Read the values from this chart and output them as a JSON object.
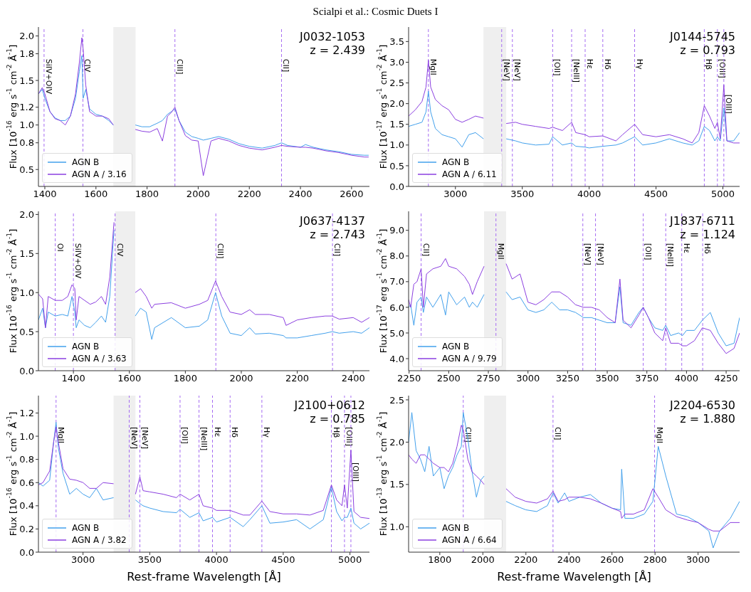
{
  "chart_data": [
    {
      "type": "line",
      "title": "Scialpi et al.: Cosmic Duets I",
      "ylabel": "Flux [10$^{-16}$ erg s$^{-1}$ cm$^{-2}$ Å$^{-1}$]",
      "annotations": [
        "J0032-1053",
        "z = 2.439"
      ],
      "legend": "bottom left",
      "x": [
        1375,
        1390,
        1400,
        1420,
        1440,
        1460,
        1480,
        1500,
        1520,
        1535,
        1545,
        1550,
        1560,
        1575,
        1600,
        1625,
        1650,
        1668,
        1710,
        1754,
        1780,
        1810,
        1840,
        1860,
        1880,
        1895,
        1909,
        1925,
        1950,
        1975,
        2000,
        2020,
        2050,
        2080,
        2120,
        2160,
        2200,
        2250,
        2300,
        2326,
        2350,
        2400,
        2420,
        2450,
        2500,
        2550,
        2600,
        2650,
        2667
      ],
      "series": [
        {
          "name": "AGN B",
          "color": "#42a0ec",
          "values": [
            1.35,
            1.4,
            1.3,
            1.15,
            1.08,
            1.05,
            1.05,
            1.1,
            1.3,
            1.6,
            1.78,
            1.3,
            1.4,
            1.18,
            1.12,
            1.1,
            1.05,
            1.0,
            null,
            1.0,
            0.98,
            0.98,
            1.02,
            1.05,
            1.12,
            1.15,
            1.18,
            1.05,
            0.92,
            0.87,
            0.85,
            0.83,
            0.85,
            0.87,
            0.84,
            0.79,
            0.76,
            0.74,
            0.77,
            0.8,
            0.77,
            0.75,
            0.78,
            0.75,
            0.72,
            0.7,
            0.67,
            0.66,
            0.66
          ]
        },
        {
          "name": "AGN A / 3.16",
          "color": "#8b3fe0",
          "values": [
            1.35,
            1.42,
            1.35,
            1.15,
            1.07,
            1.05,
            1.0,
            1.1,
            1.35,
            1.7,
            1.98,
            1.85,
            1.45,
            1.15,
            1.1,
            1.1,
            1.07,
            1.0,
            null,
            0.95,
            0.93,
            0.92,
            0.96,
            0.82,
            1.1,
            1.14,
            1.2,
            1.05,
            0.88,
            0.83,
            0.82,
            0.43,
            0.82,
            0.85,
            0.82,
            0.77,
            0.74,
            0.72,
            0.75,
            0.77,
            0.76,
            0.75,
            0.75,
            0.74,
            0.71,
            0.69,
            0.66,
            0.64,
            0.64
          ]
        }
      ],
      "xlim": [
        1375,
        2670
      ],
      "ylim": [
        0.31,
        2.1
      ],
      "xticks": [
        1400,
        1600,
        1800,
        2000,
        2200,
        2400,
        2600
      ],
      "yticks": [
        0.5,
        0.8,
        {
          "value": 1,
          "label": "1.0"
        },
        1.2,
        1.5,
        1.8,
        {
          "value": 2,
          "label": "2.0"
        }
      ],
      "bands": [
        {
          "axis": "x",
          "from": 1668,
          "to": 1755,
          "color": "#efefef"
        }
      ],
      "ref_lines": [
        {
          "axis": "x",
          "value": 1397,
          "label": "SiIV+OIV",
          "color": "#a66cf2",
          "line_style": "dashed"
        },
        {
          "axis": "x",
          "value": 1549,
          "label": "CIV",
          "color": "#a66cf2",
          "line_style": "dashed"
        },
        {
          "axis": "x",
          "value": 1909,
          "label": "CIII]",
          "color": "#a66cf2",
          "line_style": "dashed"
        },
        {
          "axis": "x",
          "value": 2326,
          "label": "CII]",
          "color": "#a66cf2",
          "line_style": "dashed"
        }
      ]
    },
    {
      "type": "line",
      "ylabel": "Flux [10$^{-17}$ erg s$^{-1}$ cm$^{-2}$ Å$^{-1}$]",
      "annotations": [
        "J0144-5745",
        "z = 0.793"
      ],
      "legend": "bottom left",
      "x": [
        2650,
        2700,
        2750,
        2780,
        2798,
        2815,
        2850,
        2900,
        2950,
        3000,
        3050,
        3100,
        3150,
        3210,
        3300,
        3380,
        3450,
        3500,
        3600,
        3700,
        3727,
        3800,
        3869,
        3900,
        3970,
        4000,
        4102,
        4200,
        4250,
        4340,
        4400,
        4500,
        4600,
        4700,
        4770,
        4820,
        4861,
        4900,
        4940,
        4959,
        4980,
        5007,
        5030,
        5080,
        5125
      ],
      "series": [
        {
          "name": "AGN B",
          "color": "#42a0ec",
          "values": [
            1.45,
            1.5,
            1.55,
            1.8,
            2.3,
            1.8,
            1.4,
            1.25,
            1.2,
            1.15,
            0.95,
            1.25,
            1.3,
            1.15,
            null,
            1.15,
            1.1,
            1.05,
            1.0,
            1.02,
            1.2,
            1.0,
            1.05,
            0.97,
            0.95,
            0.93,
            0.97,
            1.0,
            1.05,
            1.2,
            1.0,
            1.05,
            1.15,
            1.05,
            1.0,
            1.1,
            1.45,
            1.35,
            1.1,
            1.2,
            1.1,
            1.9,
            1.1,
            1.1,
            1.3
          ]
        },
        {
          "name": "AGN A / 6.11",
          "color": "#8b3fe0",
          "values": [
            1.7,
            1.85,
            2.05,
            2.4,
            3.05,
            2.4,
            2.1,
            1.95,
            1.85,
            1.62,
            1.55,
            1.62,
            1.7,
            1.65,
            null,
            1.52,
            1.55,
            1.5,
            1.45,
            1.4,
            1.43,
            1.35,
            1.55,
            1.3,
            1.25,
            1.2,
            1.22,
            1.1,
            1.25,
            1.5,
            1.25,
            1.2,
            1.25,
            1.15,
            1.05,
            1.3,
            1.95,
            1.7,
            1.4,
            1.55,
            1.15,
            2.45,
            1.1,
            1.05,
            1.05
          ]
        }
      ],
      "xlim": [
        2650,
        5125
      ],
      "ylim": [
        0,
        3.85
      ],
      "xticks": [
        3000,
        3500,
        4000,
        4500,
        5000
      ],
      "yticks": [
        {
          "value": 0,
          "label": "0.0"
        },
        0.5,
        {
          "value": 1,
          "label": "1.0"
        },
        1.5,
        {
          "value": 2,
          "label": "2.0"
        },
        2.5,
        {
          "value": 3,
          "label": "3.0"
        },
        3.5
      ],
      "bands": [
        {
          "axis": "x",
          "from": 3210,
          "to": 3380,
          "color": "#efefef"
        }
      ],
      "ref_lines": [
        {
          "axis": "x",
          "value": 2798,
          "label": "MgII",
          "color": "#a66cf2",
          "line_style": "dashed"
        },
        {
          "axis": "x",
          "value": 3346,
          "label": "[NeV]",
          "color": "#a66cf2",
          "line_style": "dashed"
        },
        {
          "axis": "x",
          "value": 3426,
          "label": "[NeV]",
          "color": "#a66cf2",
          "line_style": "dashed"
        },
        {
          "axis": "x",
          "value": 3727,
          "label": "[OII]",
          "color": "#a66cf2",
          "line_style": "dashed"
        },
        {
          "axis": "x",
          "value": 3869,
          "label": "[NeIII]",
          "color": "#a66cf2",
          "line_style": "dashed"
        },
        {
          "axis": "x",
          "value": 3970,
          "label": "Hε",
          "color": "#a66cf2",
          "line_style": "dashed"
        },
        {
          "axis": "x",
          "value": 4102,
          "label": "Hδ",
          "color": "#a66cf2",
          "line_style": "dashed"
        },
        {
          "axis": "x",
          "value": 4340,
          "label": "Hγ",
          "color": "#a66cf2",
          "line_style": "dashed"
        },
        {
          "axis": "x",
          "value": 4861,
          "label": "Hβ",
          "color": "#a66cf2",
          "line_style": "dashed"
        },
        {
          "axis": "x",
          "value": 4959,
          "label": "[OIII]",
          "color": "#a66cf2",
          "line_style": "dashed"
        },
        {
          "axis": "x",
          "value": 5007,
          "label": "[OIII]",
          "color": "#a66cf2",
          "line_style": "dashed"
        }
      ]
    },
    {
      "type": "line",
      "ylabel": "Flux [10$^{-16}$ erg s$^{-1}$ cm$^{-2}$ Å$^{-1}$]",
      "annotations": [
        "J0637-4137",
        "z = 2.743"
      ],
      "legend": "bottom left",
      "x": [
        1275,
        1290,
        1300,
        1310,
        1335,
        1360,
        1380,
        1395,
        1405,
        1410,
        1420,
        1440,
        1460,
        1480,
        1500,
        1515,
        1530,
        1545,
        1585,
        1621,
        1640,
        1660,
        1680,
        1690,
        1750,
        1800,
        1850,
        1880,
        1908,
        1930,
        1960,
        2000,
        2030,
        2050,
        2100,
        2150,
        2160,
        2200,
        2250,
        2300,
        2325,
        2350,
        2400,
        2430,
        2458
      ],
      "series": [
        {
          "name": "AGN B",
          "color": "#42a0ec",
          "values": [
            0.65,
            0.8,
            0.55,
            0.75,
            0.7,
            0.72,
            0.7,
            0.95,
            0.75,
            0.55,
            0.65,
            0.58,
            0.55,
            0.62,
            0.7,
            0.62,
            0.95,
            1.8,
            null,
            0.7,
            0.8,
            0.75,
            0.4,
            0.55,
            0.68,
            0.55,
            0.57,
            0.65,
            1.0,
            0.7,
            0.48,
            0.45,
            0.55,
            0.47,
            0.48,
            0.45,
            0.42,
            0.42,
            0.45,
            0.48,
            0.5,
            0.48,
            0.5,
            0.48,
            0.55
          ]
        },
        {
          "name": "AGN A / 3.63",
          "color": "#8b3fe0",
          "values": [
            0.98,
            0.92,
            0.55,
            0.95,
            0.9,
            0.9,
            0.95,
            1.1,
            1.05,
            0.65,
            0.95,
            0.9,
            0.85,
            0.88,
            0.95,
            0.85,
            1.2,
            1.9,
            null,
            1.0,
            1.05,
            0.95,
            0.8,
            0.85,
            0.87,
            0.8,
            0.85,
            0.9,
            1.15,
            0.95,
            0.75,
            0.72,
            0.78,
            0.72,
            0.72,
            0.68,
            0.58,
            0.65,
            0.68,
            0.7,
            0.7,
            0.66,
            0.68,
            0.62,
            0.68
          ]
        }
      ],
      "xlim": [
        1275,
        2458
      ],
      "ylim": [
        0,
        2.04
      ],
      "xticks": [
        1400,
        1600,
        1800,
        2000,
        2200,
        2400
      ],
      "yticks": [
        {
          "value": 0,
          "label": "0.0"
        },
        0.5,
        {
          "value": 1,
          "label": "1.0"
        },
        1.5,
        {
          "value": 2,
          "label": "2.0"
        }
      ],
      "bands": [
        {
          "axis": "x",
          "from": 1549,
          "to": 1621,
          "color": "#efefef"
        }
      ],
      "ref_lines": [
        {
          "axis": "x",
          "value": 1335,
          "label": "OI",
          "color": "#a66cf2",
          "line_style": "dashed"
        },
        {
          "axis": "x",
          "value": 1400,
          "label": "SiIV+OIV",
          "color": "#a66cf2",
          "line_style": "dashed"
        },
        {
          "axis": "x",
          "value": 1549,
          "label": "CIV",
          "color": "#a66cf2",
          "line_style": "dashed"
        },
        {
          "axis": "x",
          "value": 1909,
          "label": "CIII]",
          "color": "#a66cf2",
          "line_style": "dashed"
        },
        {
          "axis": "x",
          "value": 2326,
          "label": "CII]",
          "color": "#a66cf2",
          "line_style": "dashed"
        }
      ]
    },
    {
      "type": "line",
      "ylabel": "Flux [10$^{-17}$ erg s$^{-1}$ cm$^{-2}$ Å$^{-1}$]",
      "annotations": [
        "J1837-6711",
        "z = 1.124"
      ],
      "legend": "bottom left",
      "x": [
        2247,
        2260,
        2280,
        2300,
        2326,
        2340,
        2360,
        2400,
        2450,
        2480,
        2500,
        2550,
        2600,
        2630,
        2650,
        2680,
        2723,
        2790,
        2862,
        2900,
        2950,
        3000,
        3050,
        3100,
        3150,
        3200,
        3250,
        3300,
        3350,
        3400,
        3450,
        3500,
        3550,
        3580,
        3600,
        3650,
        3700,
        3727,
        3760,
        3800,
        3850,
        3869,
        3900,
        3950,
        3975,
        4000,
        4050,
        4100,
        4150,
        4200,
        4250,
        4300,
        4335
      ],
      "series": [
        {
          "name": "AGN B",
          "color": "#42a0ec",
          "values": [
            6.0,
            6.1,
            5.3,
            6.2,
            6.4,
            5.8,
            6.4,
            6.0,
            6.5,
            5.7,
            6.6,
            6.1,
            6.4,
            6.0,
            6.2,
            6.0,
            6.5,
            null,
            6.6,
            6.3,
            6.4,
            5.9,
            5.8,
            5.9,
            6.2,
            5.9,
            5.9,
            5.8,
            5.6,
            5.6,
            5.5,
            5.4,
            5.4,
            6.8,
            5.4,
            5.3,
            5.8,
            6.0,
            5.6,
            5.2,
            5.1,
            5.3,
            4.9,
            5.0,
            4.9,
            5.1,
            5.1,
            5.5,
            5.8,
            5.0,
            4.5,
            4.6,
            5.6
          ]
        },
        {
          "name": "AGN A / 9.79",
          "color": "#8b3fe0",
          "values": [
            6.3,
            6.0,
            6.9,
            7.0,
            7.5,
            6.0,
            7.3,
            7.5,
            7.6,
            7.9,
            7.6,
            7.5,
            7.2,
            6.9,
            6.5,
            7.0,
            7.6,
            null,
            7.7,
            7.1,
            7.3,
            6.2,
            6.1,
            6.3,
            6.6,
            6.6,
            6.4,
            6.1,
            6.0,
            6.0,
            5.9,
            5.6,
            5.4,
            7.1,
            5.5,
            5.2,
            5.7,
            6.0,
            5.6,
            5.0,
            4.7,
            5.2,
            4.6,
            4.6,
            4.5,
            4.5,
            4.7,
            5.2,
            5.1,
            4.6,
            4.2,
            4.4,
            5.0
          ]
        }
      ],
      "xlim": [
        2247,
        4335
      ],
      "ylim": [
        3.53,
        9.74
      ],
      "xticks": [
        2250,
        2500,
        2750,
        3000,
        3250,
        3500,
        3750,
        4000,
        4250
      ],
      "yticks": [
        {
          "value": 4,
          "label": "4.0"
        },
        {
          "value": 5,
          "label": "5.0"
        },
        {
          "value": 6,
          "label": "6.0"
        },
        {
          "value": 7,
          "label": "7.0"
        },
        {
          "value": 8,
          "label": "8.0"
        },
        {
          "value": 9,
          "label": "9.0"
        }
      ],
      "bands": [
        {
          "axis": "x",
          "from": 2723,
          "to": 2862,
          "color": "#efefef"
        }
      ],
      "ref_lines": [
        {
          "axis": "x",
          "value": 2326,
          "label": "CII]",
          "color": "#a66cf2",
          "line_style": "dashed"
        },
        {
          "axis": "x",
          "value": 2798,
          "label": "MgII",
          "color": "#a66cf2",
          "line_style": "dashed"
        },
        {
          "axis": "x",
          "value": 3346,
          "label": "[NeV]",
          "color": "#a66cf2",
          "line_style": "dashed"
        },
        {
          "axis": "x",
          "value": 3426,
          "label": "[NeV]",
          "color": "#a66cf2",
          "line_style": "dashed"
        },
        {
          "axis": "x",
          "value": 3727,
          "label": "[OII]",
          "color": "#a66cf2",
          "line_style": "dashed"
        },
        {
          "axis": "x",
          "value": 3869,
          "label": "[NeIII]",
          "color": "#a66cf2",
          "line_style": "dashed"
        },
        {
          "axis": "x",
          "value": 3970,
          "label": "Hε",
          "color": "#a66cf2",
          "line_style": "dashed"
        },
        {
          "axis": "x",
          "value": 4102,
          "label": "Hδ",
          "color": "#a66cf2",
          "line_style": "dashed"
        }
      ]
    },
    {
      "type": "line",
      "xlabel": "Rest-frame Wavelength [Å]",
      "ylabel": "Flux [10$^{-16}$ erg s$^{-1}$ cm$^{-2}$ Å$^{-1}$]",
      "annotations": [
        "J2100+0612",
        "z = 0.785"
      ],
      "legend": "bottom left",
      "x": [
        2666,
        2700,
        2750,
        2780,
        2798,
        2815,
        2850,
        2900,
        2950,
        3000,
        3050,
        3100,
        3150,
        3229,
        3310,
        3393,
        3426,
        3450,
        3500,
        3600,
        3700,
        3727,
        3800,
        3869,
        3900,
        3970,
        4000,
        4102,
        4200,
        4250,
        4340,
        4400,
        4500,
        4600,
        4700,
        4800,
        4861,
        4900,
        4940,
        4959,
        4980,
        5007,
        5030,
        5080,
        5146
      ],
      "series": [
        {
          "name": "AGN B",
          "color": "#42a0ec",
          "values": [
            0.6,
            0.57,
            0.62,
            0.95,
            1.12,
            0.9,
            0.68,
            0.5,
            0.55,
            0.5,
            0.47,
            0.55,
            0.45,
            0.47,
            null,
            0.45,
            0.42,
            0.4,
            0.38,
            0.35,
            0.34,
            0.37,
            0.3,
            0.34,
            0.27,
            0.3,
            0.26,
            0.3,
            0.22,
            0.28,
            0.4,
            0.25,
            0.26,
            0.28,
            0.2,
            0.28,
            0.56,
            0.35,
            0.27,
            0.3,
            0.3,
            0.38,
            0.25,
            0.2,
            0.25
          ]
        },
        {
          "name": "AGN A / 3.82",
          "color": "#8b3fe0",
          "values": [
            0.58,
            0.6,
            0.7,
            0.95,
            1.08,
            0.95,
            0.72,
            0.63,
            0.62,
            0.6,
            0.55,
            0.55,
            0.6,
            0.59,
            null,
            0.5,
            0.65,
            0.53,
            0.52,
            0.5,
            0.47,
            0.5,
            0.45,
            0.5,
            0.4,
            0.38,
            0.36,
            0.36,
            0.32,
            0.32,
            0.44,
            0.35,
            0.33,
            0.33,
            0.32,
            0.36,
            0.58,
            0.45,
            0.4,
            0.58,
            0.38,
            0.88,
            0.35,
            0.3,
            0.29
          ]
        }
      ],
      "xlim": [
        2666,
        5146
      ],
      "ylim": [
        0,
        1.35
      ],
      "xticks": [
        3000,
        3500,
        4000,
        4500,
        5000
      ],
      "yticks": [
        {
          "value": 0,
          "label": "0.0"
        },
        0.2,
        0.4,
        0.6,
        0.8,
        {
          "value": 1,
          "label": "1.0"
        },
        1.2
      ],
      "bands": [
        {
          "axis": "x",
          "from": 3229,
          "to": 3393,
          "color": "#efefef"
        }
      ],
      "ref_lines": [
        {
          "axis": "x",
          "value": 2798,
          "label": "MgII",
          "color": "#a66cf2",
          "line_style": "dashed"
        },
        {
          "axis": "x",
          "value": 3346,
          "label": "[NeV]",
          "color": "#a66cf2",
          "line_style": "dashed"
        },
        {
          "axis": "x",
          "value": 3426,
          "label": "[NeV]",
          "color": "#a66cf2",
          "line_style": "dashed"
        },
        {
          "axis": "x",
          "value": 3727,
          "label": "[OII]",
          "color": "#a66cf2",
          "line_style": "dashed"
        },
        {
          "axis": "x",
          "value": 3869,
          "label": "[NeIII]",
          "color": "#a66cf2",
          "line_style": "dashed"
        },
        {
          "axis": "x",
          "value": 3970,
          "label": "Hε",
          "color": "#a66cf2",
          "line_style": "dashed"
        },
        {
          "axis": "x",
          "value": 4102,
          "label": "Hδ",
          "color": "#a66cf2",
          "line_style": "dashed"
        },
        {
          "axis": "x",
          "value": 4340,
          "label": "Hγ",
          "color": "#a66cf2",
          "line_style": "dashed"
        },
        {
          "axis": "x",
          "value": 4861,
          "label": "Hβ",
          "color": "#a66cf2",
          "line_style": "dashed"
        },
        {
          "axis": "x",
          "value": 4959,
          "label": "[OIII]",
          "color": "#a66cf2",
          "line_style": "dashed"
        },
        {
          "axis": "x",
          "value": 5007,
          "label": "[OIII]",
          "color": "#a66cf2",
          "line_style": "dashed"
        }
      ]
    },
    {
      "type": "line",
      "xlabel": "Rest-frame Wavelength [Å]",
      "ylabel": "Flux [10$^{-13}$ erg s$^{-1}$ cm$^{-2}$ Å$^{-1}$]",
      "annotations": [
        "J2204-6530",
        "z = 1.880"
      ],
      "legend": "bottom left",
      "x": [
        1655,
        1670,
        1690,
        1710,
        1730,
        1750,
        1770,
        1800,
        1820,
        1840,
        1860,
        1880,
        1900,
        1909,
        1930,
        1950,
        1970,
        1990,
        2006,
        2050,
        2108,
        2150,
        2200,
        2250,
        2300,
        2326,
        2350,
        2380,
        2400,
        2450,
        2500,
        2550,
        2600,
        2640,
        2645,
        2660,
        2700,
        2750,
        2790,
        2815,
        2850,
        2900,
        2950,
        3000,
        3050,
        3070,
        3100,
        3150,
        3193
      ],
      "series": [
        {
          "name": "AGN B",
          "color": "#42a0ec",
          "values": [
            2.0,
            2.35,
            1.9,
            1.8,
            1.65,
            1.95,
            1.6,
            1.7,
            1.45,
            1.6,
            1.7,
            1.85,
            1.95,
            2.35,
            2.05,
            1.65,
            1.35,
            1.55,
            1.6,
            null,
            1.3,
            1.25,
            1.2,
            1.18,
            1.25,
            1.4,
            1.28,
            1.4,
            1.3,
            1.35,
            1.38,
            1.28,
            1.22,
            1.2,
            1.68,
            1.1,
            1.1,
            1.15,
            1.3,
            1.95,
            1.6,
            1.15,
            1.12,
            1.05,
            0.95,
            0.75,
            0.95,
            1.1,
            1.3
          ]
        },
        {
          "name": "AGN A / 6.64",
          "color": "#8b3fe0",
          "values": [
            1.85,
            1.8,
            1.75,
            1.85,
            1.85,
            1.8,
            1.75,
            1.7,
            1.7,
            1.65,
            1.75,
            1.95,
            2.2,
            2.15,
            1.8,
            1.65,
            1.6,
            1.55,
            1.5,
            null,
            1.45,
            1.35,
            1.3,
            1.28,
            1.33,
            1.42,
            1.3,
            1.32,
            1.35,
            1.35,
            1.33,
            1.28,
            1.22,
            1.18,
            1.1,
            1.15,
            1.15,
            1.2,
            1.45,
            1.35,
            1.2,
            1.12,
            1.08,
            1.05,
            0.97,
            0.95,
            0.95,
            1.05,
            1.05
          ]
        }
      ],
      "xlim": [
        1655,
        3193
      ],
      "ylim": [
        0.7,
        2.55
      ],
      "xticks": [
        1800,
        2000,
        2200,
        2400,
        2600,
        2800,
        3000
      ],
      "yticks": [
        {
          "value": 1,
          "label": "1.0"
        },
        1.5,
        {
          "value": 2,
          "label": "2.0"
        },
        2.5
      ],
      "bands": [
        {
          "axis": "x",
          "from": 2006,
          "to": 2108,
          "color": "#efefef"
        }
      ],
      "ref_lines": [
        {
          "axis": "x",
          "value": 1909,
          "label": "CIII]",
          "color": "#a66cf2",
          "line_style": "dashed"
        },
        {
          "axis": "x",
          "value": 2326,
          "label": "CII]",
          "color": "#a66cf2",
          "line_style": "dashed"
        },
        {
          "axis": "x",
          "value": 2798,
          "label": "MgII",
          "color": "#a66cf2",
          "line_style": "dashed"
        }
      ]
    }
  ]
}
